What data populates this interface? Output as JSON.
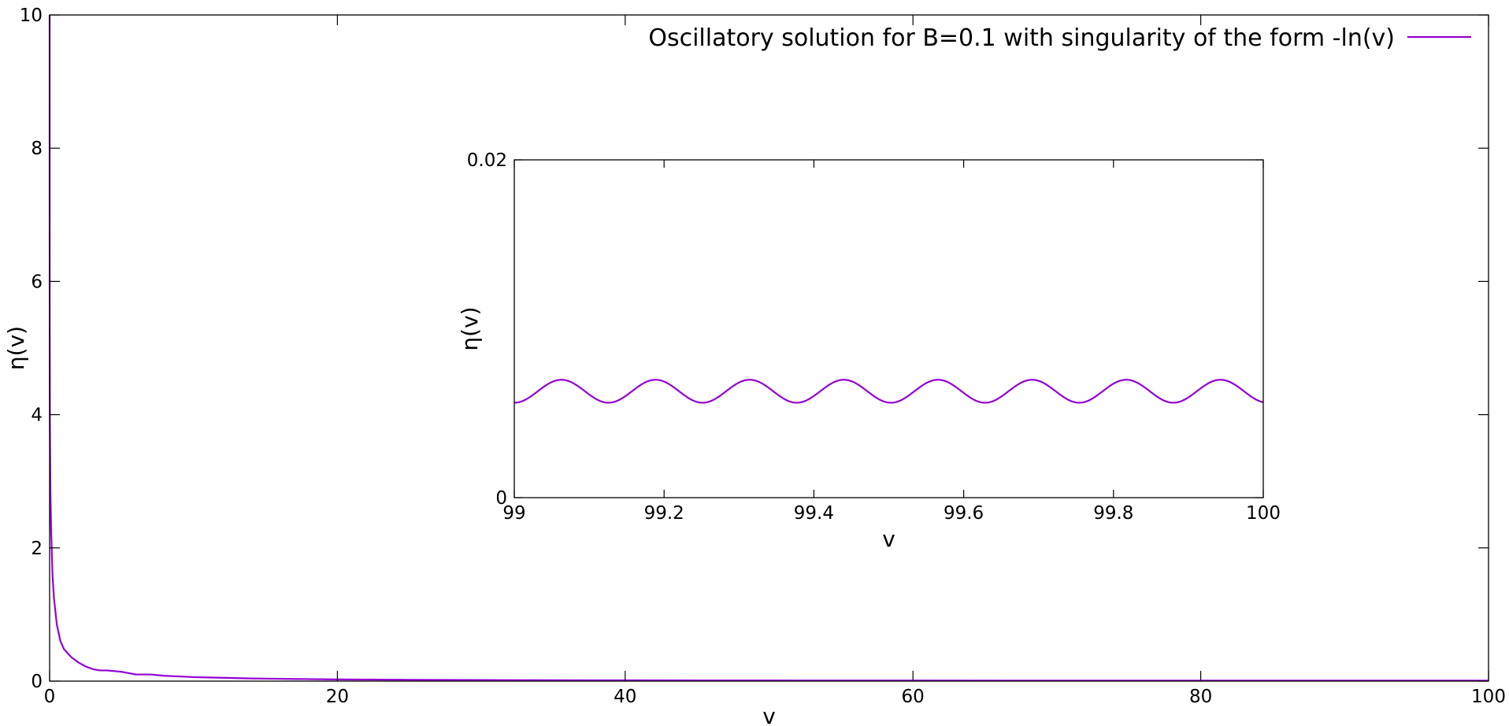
{
  "chart_data": [
    {
      "id": "main",
      "type": "line",
      "title": "",
      "xlabel": "v",
      "ylabel": "η(v)",
      "xlim": [
        0,
        100
      ],
      "ylim": [
        0,
        10
      ],
      "x_ticks": [
        0,
        20,
        40,
        60,
        80,
        100
      ],
      "y_ticks": [
        0,
        2,
        4,
        6,
        8,
        10
      ],
      "x_tick_labels": [
        "0",
        "20",
        "40",
        "60",
        "80",
        "100"
      ],
      "y_tick_labels": [
        "0",
        "2",
        "4",
        "6",
        "8",
        "10"
      ],
      "grid": false,
      "legend_position": "top-right",
      "series": [
        {
          "name": "Oscillatory solution for B=0.1 with singularity of the form -ln(v)",
          "color": "#9400d3",
          "x": [
            0.0003,
            0.001,
            0.005,
            0.02,
            0.05,
            0.1,
            0.2,
            0.3,
            0.5,
            0.75,
            1,
            1.5,
            2,
            2.5,
            3,
            3.5,
            4,
            5,
            6,
            7,
            8,
            9,
            10,
            12,
            14,
            16,
            18,
            20,
            25,
            30,
            40,
            50,
            60,
            70,
            80,
            90,
            100
          ],
          "values": [
            10,
            6.9,
            5.3,
            3.9,
            2.95,
            2.3,
            1.6,
            1.25,
            0.85,
            0.6,
            0.48,
            0.36,
            0.28,
            0.22,
            0.18,
            0.16,
            0.16,
            0.14,
            0.1,
            0.1,
            0.08,
            0.07,
            0.06,
            0.05,
            0.04,
            0.035,
            0.03,
            0.025,
            0.02,
            0.016,
            0.012,
            0.01,
            0.009,
            0.008,
            0.008,
            0.007,
            0.007
          ]
        }
      ]
    },
    {
      "id": "inset",
      "type": "line",
      "title": "",
      "xlabel": "v",
      "ylabel": "η(v)",
      "xlim": [
        99,
        100
      ],
      "ylim": [
        0,
        0.02
      ],
      "x_ticks": [
        99,
        99.2,
        99.4,
        99.6,
        99.8,
        100
      ],
      "y_ticks": [
        0,
        0.02
      ],
      "x_tick_labels": [
        "99",
        "99.2",
        "99.4",
        "99.6",
        "99.8",
        "100"
      ],
      "y_tick_labels": [
        "0",
        "0.02"
      ],
      "grid": false,
      "series": [
        {
          "color": "#9400d3",
          "function": {
            "mean": 0.0063,
            "amplitude": 0.00068,
            "period": 0.1257,
            "phase_at_x": 99.0,
            "phase_value": 0.75
          },
          "x": [
            99.0,
            99.0471,
            99.11,
            99.1729,
            99.2357,
            99.2986,
            99.3614,
            99.4243,
            99.4871,
            99.55,
            99.6129,
            99.6757,
            99.7386,
            99.8014,
            99.8643,
            99.9271,
            100.0
          ],
          "values": [
            0.0071,
            0.0056,
            0.007,
            0.0056,
            0.007,
            0.0056,
            0.007,
            0.0056,
            0.007,
            0.0056,
            0.007,
            0.0056,
            0.007,
            0.0056,
            0.007,
            0.0056,
            0.0071
          ]
        }
      ]
    }
  ]
}
